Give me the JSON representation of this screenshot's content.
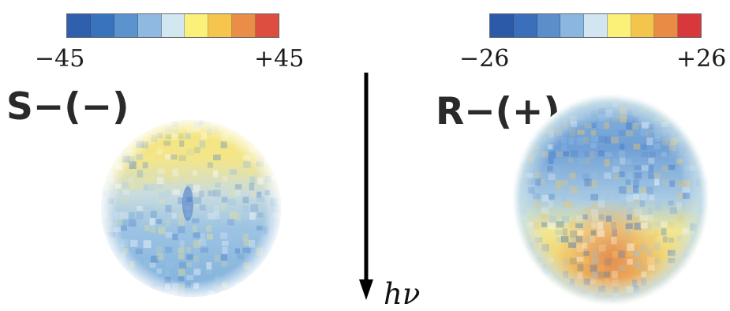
{
  "left_panel": {
    "label": "S−(−)",
    "scale_min": "−45",
    "scale_max": "+45",
    "colorbar": [
      "#2f5fad",
      "#3a73bd",
      "#5b93cf",
      "#8fb9e1",
      "#d3e7f1",
      "#fbf07a",
      "#f5c54e",
      "#ea8d47",
      "#de4e40"
    ],
    "disc": {
      "top_color": "#f6e67a",
      "bottom_color": "#7fb0dc",
      "center_spot": "#3f73c4"
    }
  },
  "right_panel": {
    "label": "R−(+)",
    "scale_min": "−26",
    "scale_max": "+26",
    "colorbar": [
      "#2c5aa8",
      "#3a70bb",
      "#5a8fcc",
      "#8bb6df",
      "#d1e6f0",
      "#fbf178",
      "#f4c54c",
      "#e98a45",
      "#d8383c"
    ],
    "disc": {
      "top_color": "#6f9fd6",
      "bottom_color": "#f2c860",
      "hotspot_color": "#e2824a"
    }
  },
  "arrow": {
    "label": "hν",
    "direction": "down"
  }
}
